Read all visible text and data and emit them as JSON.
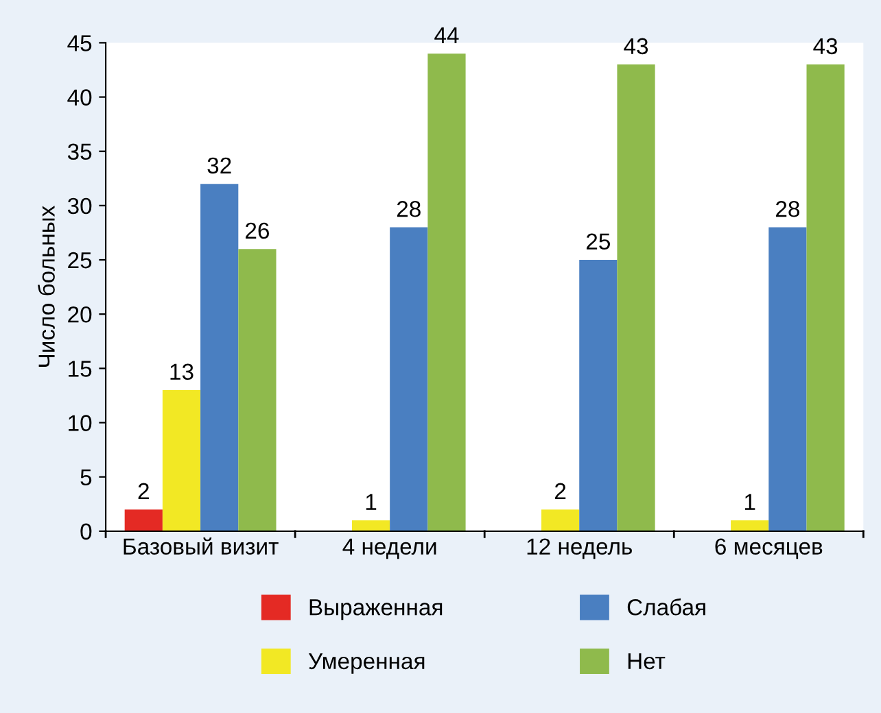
{
  "chart_data": {
    "type": "bar",
    "ylabel": "Число больных",
    "categories": [
      "Базовый визит",
      "4 недели",
      "12 недель",
      "6 месяцев"
    ],
    "series": [
      {
        "name": "Выраженная",
        "color": "#e42a24",
        "values": [
          2,
          null,
          null,
          null
        ]
      },
      {
        "name": "Умеренная",
        "color": "#f2e824",
        "values": [
          13,
          1,
          2,
          1
        ]
      },
      {
        "name": "Слабая",
        "color": "#4a7fc1",
        "values": [
          32,
          28,
          25,
          28
        ]
      },
      {
        "name": "Нет",
        "color": "#8fba4c",
        "values": [
          26,
          44,
          43,
          43
        ]
      }
    ],
    "ylim": [
      0,
      45
    ],
    "yticks": [
      0,
      5,
      10,
      15,
      20,
      25,
      30,
      35,
      40,
      45
    ],
    "data_labels": true,
    "grid": false,
    "legend": "bottom"
  }
}
